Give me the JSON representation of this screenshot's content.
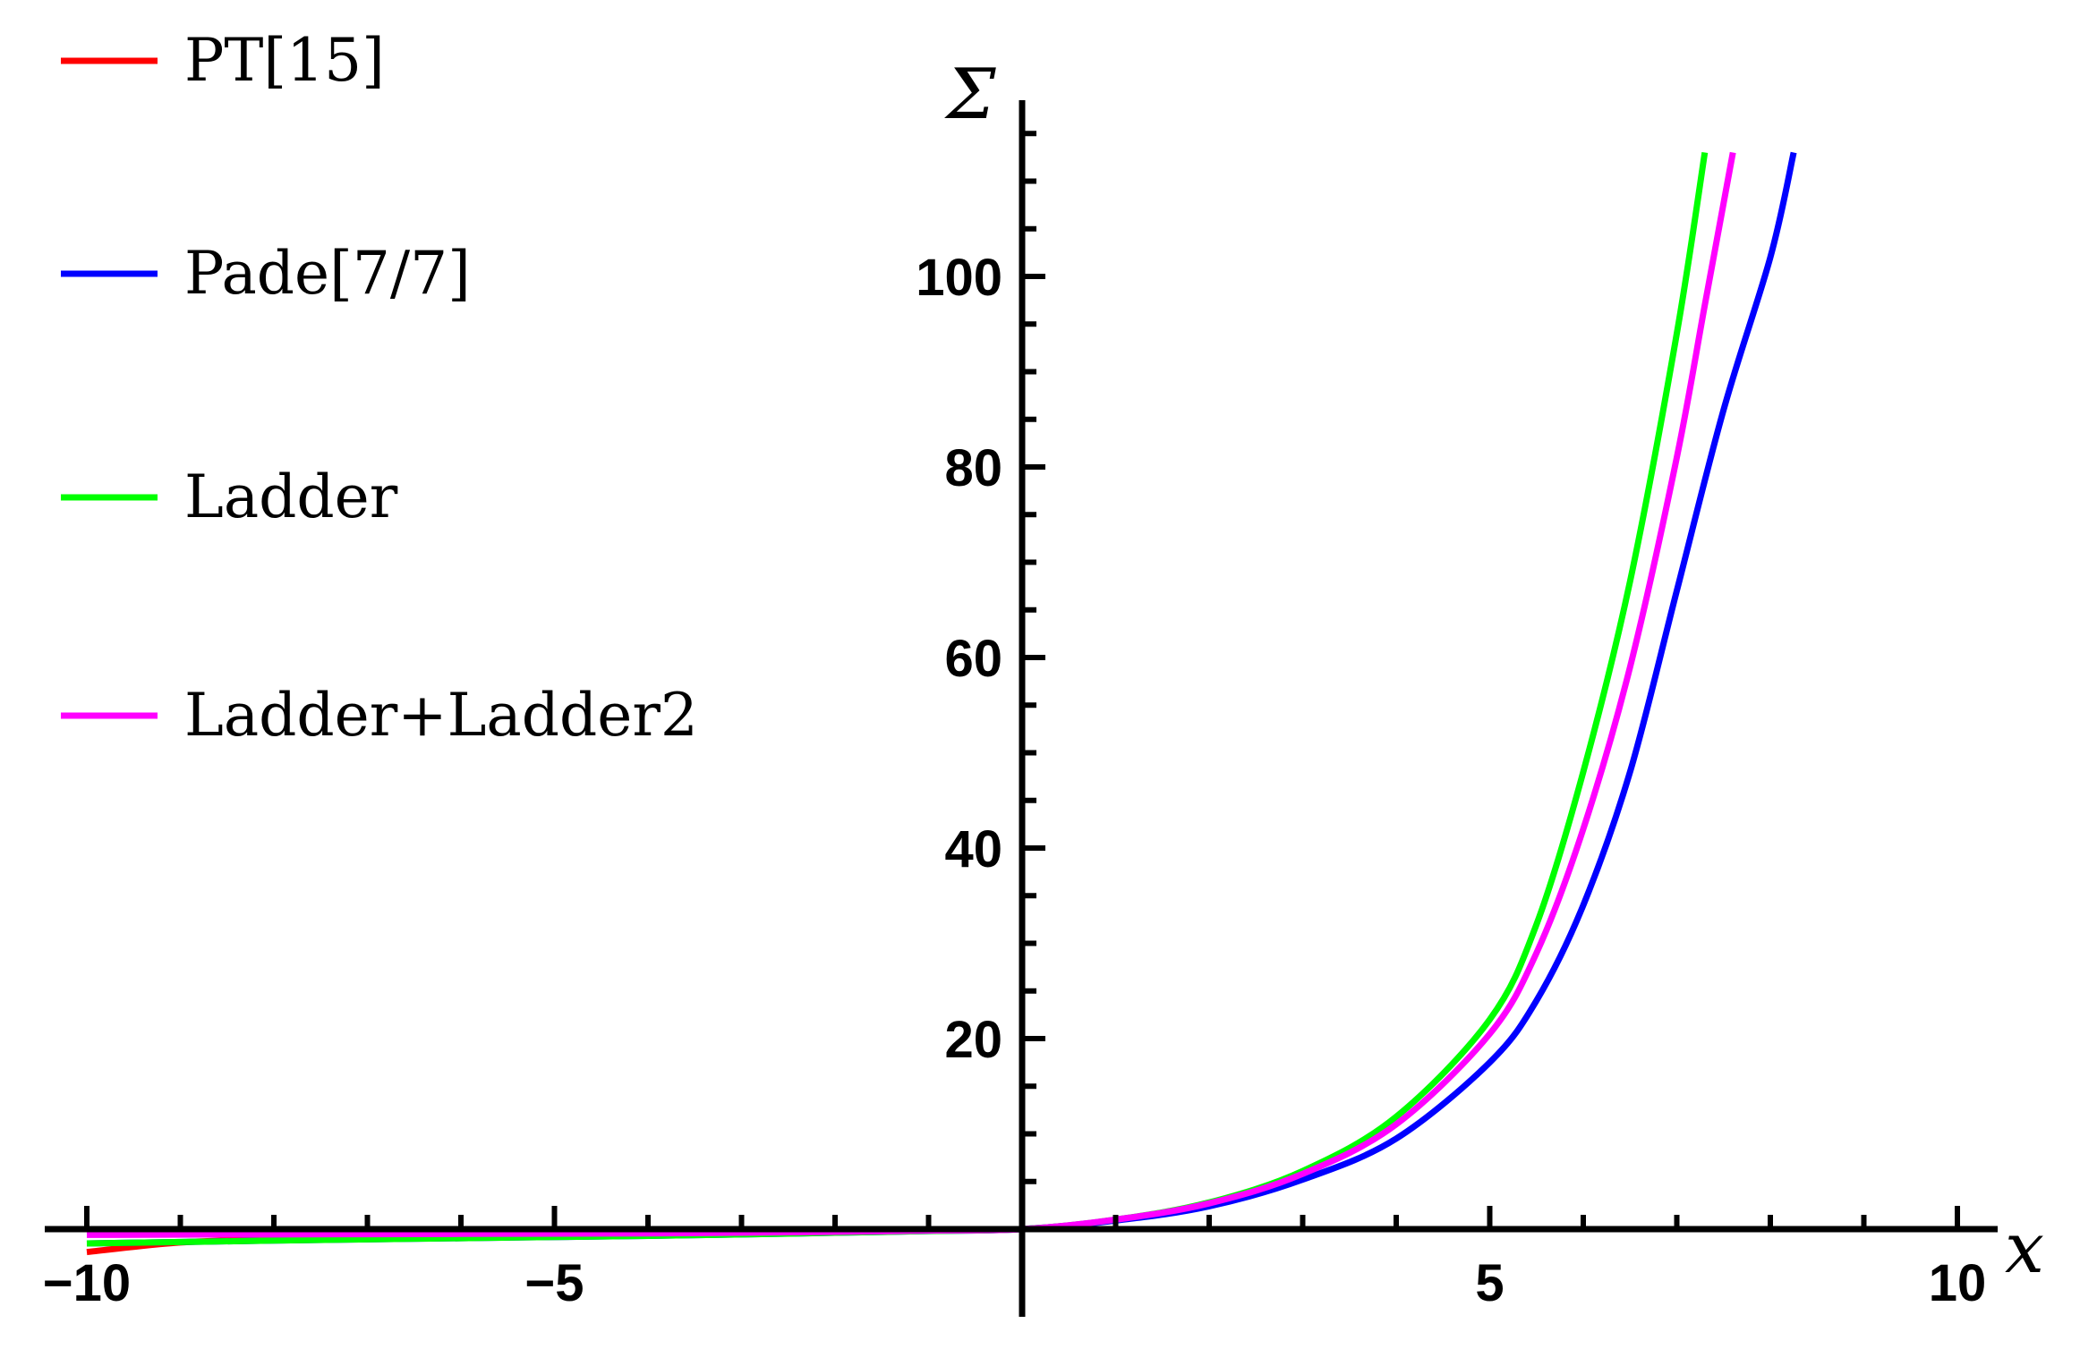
{
  "chart_data": {
    "type": "line",
    "title": "",
    "xlabel": "x",
    "ylabel": "Σ",
    "xlim": [
      -10,
      10.4
    ],
    "ylim": [
      -2,
      118
    ],
    "x_ticks": [
      -10,
      -5,
      5,
      10
    ],
    "x_tick_labels": [
      "−10",
      "−5",
      "5",
      "10"
    ],
    "y_ticks": [
      20,
      40,
      60,
      80,
      100
    ],
    "y_tick_labels": [
      "20",
      "40",
      "60",
      "80",
      "100"
    ],
    "grid": false,
    "legend_position": "left",
    "series": [
      {
        "name": "PT[15]",
        "color": "#ff0000",
        "x": [
          -10,
          -9,
          -8,
          -7,
          -6,
          -5,
          -4,
          -3,
          -2,
          -1,
          0
        ],
        "y": [
          -2.4,
          -1.4,
          -1.1,
          -0.95,
          -0.85,
          -0.75,
          -0.62,
          -0.48,
          -0.33,
          -0.17,
          0
        ]
      },
      {
        "name": "Pade[7/7]",
        "color": "#0000ff",
        "x": [
          -10,
          -8,
          -6,
          -4,
          -3,
          -2,
          -1,
          0,
          1,
          2,
          3,
          4,
          5,
          5.5,
          6,
          6.5,
          7,
          7.5,
          8,
          8.25
        ],
        "y": [
          -1.5,
          -1.2,
          -0.95,
          -0.7,
          -0.55,
          -0.38,
          -0.2,
          0,
          0.9,
          2.4,
          5.2,
          9.5,
          17.5,
          24,
          34,
          48,
          67,
          86,
          102,
          113
        ]
      },
      {
        "name": "Ladder",
        "color": "#00ff00",
        "x": [
          -10,
          -8,
          -6,
          -4,
          -3,
          -2,
          -1,
          0,
          1,
          2,
          3,
          4,
          5,
          5.5,
          6,
          6.5,
          7,
          7.3
        ],
        "y": [
          -1.5,
          -1.2,
          -0.95,
          -0.7,
          -0.55,
          -0.38,
          -0.2,
          0,
          1.0,
          2.8,
          6.1,
          11.8,
          22,
          32,
          48,
          68,
          94,
          113
        ]
      },
      {
        "name": "Ladder+Ladder2",
        "color": "#ff00ff",
        "x": [
          -10,
          -8,
          -6,
          -4,
          -3,
          -2,
          -1,
          0,
          1,
          2,
          3,
          4,
          5,
          5.5,
          6,
          6.5,
          7,
          7.3,
          7.6
        ],
        "y": [
          -0.6,
          -0.55,
          -0.5,
          -0.45,
          -0.38,
          -0.28,
          -0.15,
          0,
          1.0,
          2.7,
          5.8,
          11.0,
          20.5,
          29,
          42,
          59,
          81,
          97,
          113
        ]
      }
    ]
  }
}
